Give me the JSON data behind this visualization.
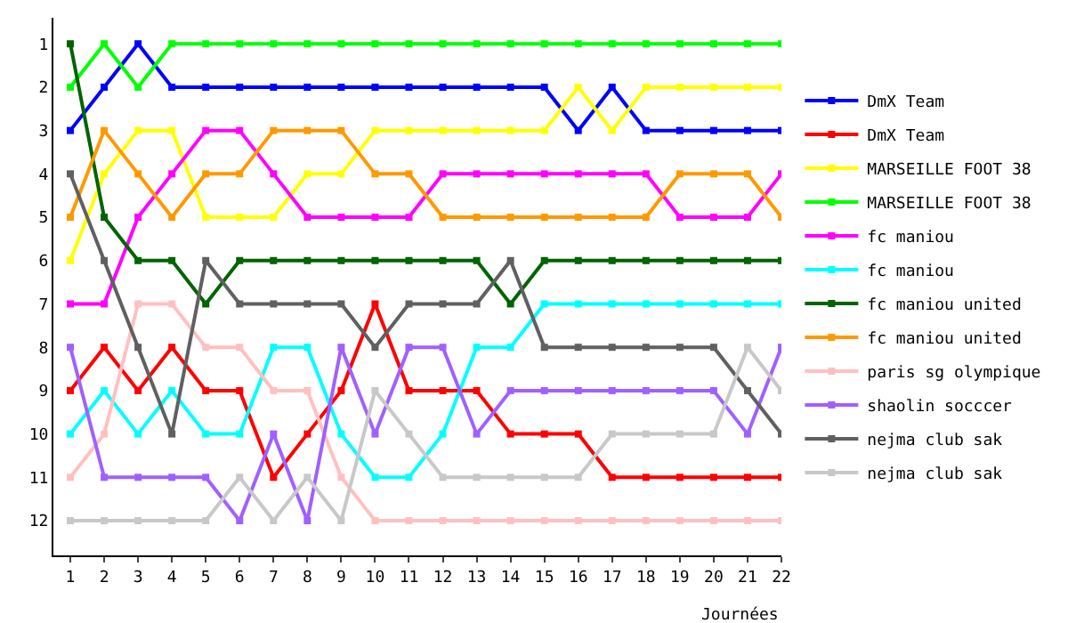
{
  "chart_data": {
    "type": "line",
    "xlabel": "Journées",
    "x": [
      1,
      2,
      3,
      4,
      5,
      6,
      7,
      8,
      9,
      10,
      11,
      12,
      13,
      14,
      15,
      16,
      17,
      18,
      19,
      20,
      21,
      22
    ],
    "xlim": [
      0.5,
      22
    ],
    "xticks": [
      1,
      2,
      3,
      4,
      5,
      6,
      7,
      8,
      9,
      10,
      11,
      12,
      13,
      14,
      15,
      16,
      17,
      18,
      19,
      20,
      21,
      22
    ],
    "ylim": [
      12.8,
      0.4
    ],
    "yticks": [
      1,
      2,
      3,
      4,
      5,
      6,
      7,
      8,
      9,
      10,
      11,
      12
    ],
    "legend": "right",
    "marker": "square",
    "line_style": "solid",
    "series": [
      {
        "name": "DmX Team",
        "color": "#0000ff",
        "values": [
          3,
          2,
          1,
          2,
          2,
          2,
          2,
          2,
          2,
          2,
          2,
          2,
          2,
          2,
          2,
          3,
          2,
          3,
          3,
          3,
          3,
          3
        ]
      },
      {
        "name": "DmX Team",
        "color": "#ff0000",
        "values": [
          9,
          8,
          9,
          8,
          9,
          9,
          11,
          10,
          9,
          7,
          9,
          9,
          9,
          10,
          10,
          10,
          11,
          11,
          11,
          11,
          11,
          11
        ]
      },
      {
        "name": "MARSEILLE FOOT 38",
        "color": "#ffff00",
        "values": [
          6,
          4,
          3,
          3,
          5,
          5,
          5,
          4,
          4,
          3,
          3,
          3,
          3,
          3,
          3,
          2,
          3,
          2,
          2,
          2,
          2,
          2
        ]
      },
      {
        "name": "MARSEILLE FOOT 38",
        "color": "#00ff00",
        "values": [
          2,
          1,
          2,
          1,
          1,
          1,
          1,
          1,
          1,
          1,
          1,
          1,
          1,
          1,
          1,
          1,
          1,
          1,
          1,
          1,
          1,
          1
        ]
      },
      {
        "name": "fc maniou",
        "color": "#ff00ff",
        "values": [
          7,
          7,
          5,
          4,
          3,
          3,
          4,
          5,
          5,
          5,
          5,
          4,
          4,
          4,
          4,
          4,
          4,
          4,
          5,
          5,
          5,
          4
        ]
      },
      {
        "name": "fc maniou",
        "color": "#00ffff",
        "values": [
          10,
          9,
          10,
          9,
          10,
          10,
          8,
          8,
          10,
          11,
          11,
          10,
          8,
          8,
          7,
          7,
          7,
          7,
          7,
          7,
          7,
          7
        ]
      },
      {
        "name": "fc maniou united",
        "color": "#006400",
        "values": [
          1,
          5,
          6,
          6,
          7,
          6,
          6,
          6,
          6,
          6,
          6,
          6,
          6,
          7,
          6,
          6,
          6,
          6,
          6,
          6,
          6,
          6
        ]
      },
      {
        "name": "fc maniou united",
        "color": "#ff9900",
        "values": [
          5,
          3,
          4,
          5,
          4,
          4,
          3,
          3,
          3,
          4,
          4,
          5,
          5,
          5,
          5,
          5,
          5,
          5,
          4,
          4,
          4,
          5
        ]
      },
      {
        "name": "paris sg olympique",
        "color": "#ffc0c0",
        "values": [
          11,
          10,
          7,
          7,
          8,
          8,
          9,
          9,
          11,
          12,
          12,
          12,
          12,
          12,
          12,
          12,
          12,
          12,
          12,
          12,
          12,
          12
        ]
      },
      {
        "name": "shaolin socccer",
        "color": "#a060ff",
        "values": [
          8,
          11,
          11,
          11,
          11,
          12,
          10,
          12,
          8,
          10,
          8,
          8,
          10,
          9,
          9,
          9,
          9,
          9,
          9,
          9,
          10,
          8
        ]
      },
      {
        "name": "nejma club sak",
        "color": "#606060",
        "values": [
          4,
          6,
          8,
          10,
          6,
          7,
          7,
          7,
          7,
          8,
          7,
          7,
          7,
          6,
          8,
          8,
          8,
          8,
          8,
          8,
          9,
          10
        ]
      },
      {
        "name": "nejma club sak",
        "color": "#c8c8c8",
        "values": [
          12,
          12,
          12,
          12,
          12,
          11,
          12,
          11,
          12,
          9,
          10,
          11,
          11,
          11,
          11,
          11,
          10,
          10,
          10,
          10,
          8,
          9
        ]
      }
    ]
  }
}
